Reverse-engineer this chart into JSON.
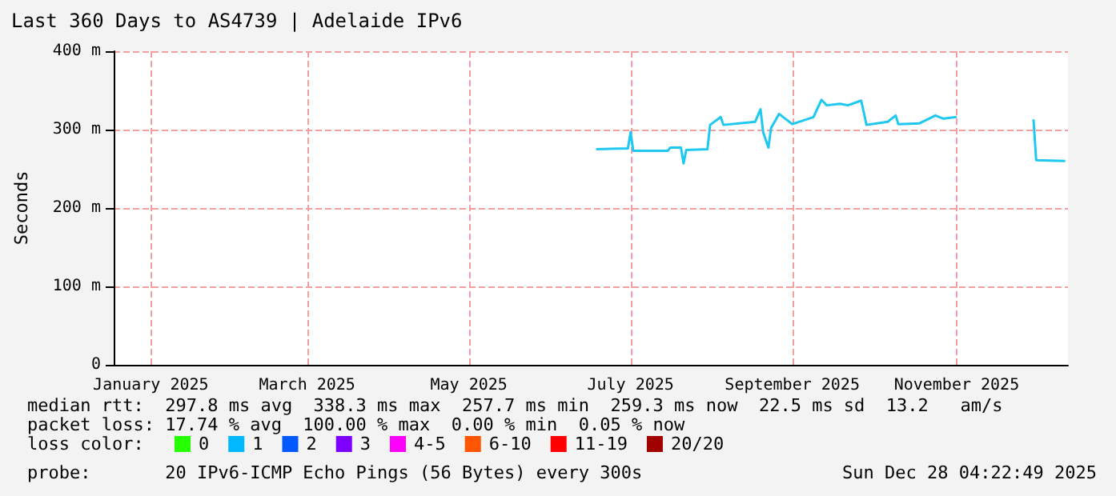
{
  "chart_data": {
    "type": "line",
    "title": "Last 360 Days to AS4739 | Adelaide IPv6",
    "ylabel": "Seconds",
    "x": [
      "2025-07-03",
      "2025-07-15",
      "2025-07-16",
      "2025-07-17",
      "2025-07-30",
      "2025-07-31",
      "2025-08-04",
      "2025-08-05",
      "2025-08-06",
      "2025-08-14",
      "2025-08-15",
      "2025-08-19",
      "2025-08-20",
      "2025-09-01",
      "2025-09-03",
      "2025-09-04",
      "2025-09-06",
      "2025-09-07",
      "2025-09-10",
      "2025-09-15",
      "2025-09-23",
      "2025-09-26",
      "2025-09-28",
      "2025-10-03",
      "2025-10-06",
      "2025-10-11",
      "2025-10-13",
      "2025-10-21",
      "2025-10-24",
      "2025-10-25",
      "2025-11-02",
      "2025-11-08",
      "2025-11-11",
      "2025-11-16",
      "2025-11-20",
      "2025-12-15",
      "2025-12-16",
      "2025-12-27"
    ],
    "series": [
      {
        "color": "#1ec8f0",
        "values": [
          275,
          276,
          297,
          273,
          273,
          277,
          277,
          257,
          274,
          275,
          306,
          316,
          306,
          310,
          326,
          297,
          277,
          302,
          320,
          307,
          316,
          338,
          331,
          333,
          331,
          337,
          306,
          310,
          318,
          307,
          308,
          318,
          314,
          316,
          null,
          313,
          261,
          260
        ]
      },
      {
        "name": "0",
        "color": "#26ff00",
        "values": [
          null,
          null,
          null,
          null,
          null,
          null,
          null,
          null,
          null,
          null,
          null,
          null,
          null,
          null,
          null,
          null,
          null,
          null,
          null,
          null,
          null,
          null,
          null,
          null,
          null,
          null,
          null,
          null,
          null,
          null,
          null,
          null,
          null,
          null,
          null,
          null,
          null,
          null
        ]
      },
      {
        "name": "1",
        "color": "#00b8ff",
        "values": [
          null,
          null,
          null,
          null,
          null,
          null,
          null,
          null,
          null,
          null,
          null,
          null,
          null,
          null,
          null,
          null,
          null,
          null,
          null,
          null,
          null,
          null,
          null,
          null,
          null,
          null,
          null,
          null,
          null,
          null,
          null,
          null,
          null,
          null,
          null,
          null,
          null,
          null
        ]
      },
      {
        "name": "2",
        "color": "#0059ff",
        "values": [
          null,
          null,
          null,
          null,
          null,
          null,
          null,
          null,
          null,
          null,
          null,
          null,
          null,
          null,
          null,
          null,
          null,
          null,
          null,
          null,
          null,
          null,
          null,
          null,
          null,
          null,
          null,
          null,
          null,
          null,
          null,
          null,
          null,
          null,
          null,
          null,
          null,
          null
        ]
      },
      {
        "name": "3",
        "color": "#7e00ff",
        "values": [
          null,
          null,
          null,
          null,
          null,
          null,
          null,
          null,
          null,
          null,
          null,
          null,
          null,
          null,
          null,
          null,
          null,
          null,
          null,
          null,
          null,
          null,
          null,
          null,
          null,
          null,
          null,
          null,
          null,
          null,
          null,
          null,
          null,
          null,
          null,
          null,
          null,
          null
        ]
      },
      {
        "name": "4-5",
        "color": "#ff00ff",
        "values": [
          null,
          null,
          null,
          null,
          null,
          null,
          null,
          null,
          null,
          null,
          null,
          null,
          null,
          null,
          null,
          null,
          null,
          null,
          null,
          null,
          null,
          null,
          null,
          null,
          null,
          null,
          null,
          null,
          null,
          null,
          null,
          null,
          null,
          null,
          null,
          null,
          null,
          null
        ]
      },
      {
        "name": "6-10",
        "color": "#ff5500",
        "values": [
          null,
          null,
          null,
          null,
          null,
          null,
          null,
          null,
          null,
          null,
          null,
          null,
          null,
          null,
          null,
          null,
          null,
          null,
          null,
          null,
          null,
          null,
          null,
          null,
          null,
          null,
          null,
          null,
          null,
          null,
          null,
          null,
          null,
          null,
          null,
          null,
          null,
          null
        ]
      },
      {
        "name": "11-19",
        "color": "#ff0000",
        "values": [
          null,
          null,
          null,
          null,
          null,
          null,
          null,
          null,
          null,
          null,
          null,
          null,
          null,
          null,
          null,
          null,
          null,
          null,
          null,
          null,
          null,
          null,
          null,
          null,
          null,
          null,
          null,
          null,
          null,
          null,
          null,
          null,
          null,
          null,
          null,
          null,
          null,
          null
        ]
      },
      {
        "name": "20/20",
        "color": "#a10000",
        "values": [
          null,
          null,
          null,
          null,
          null,
          null,
          null,
          null,
          null,
          null,
          null,
          null,
          null,
          null,
          null,
          null,
          null,
          null,
          null,
          null,
          null,
          null,
          null,
          null,
          null,
          null,
          null,
          null,
          null,
          null,
          null,
          null,
          null,
          null,
          null,
          null,
          null,
          null
        ]
      }
    ],
    "legend_title": "loss color:",
    "legend": "bottom",
    "xlim": [
      "2025-01-02",
      "2025-12-28"
    ],
    "xticks": [
      {
        "value": "2025-01-16",
        "label": "January 2025"
      },
      {
        "value": "2025-03-16",
        "label": "March 2025"
      },
      {
        "value": "2025-05-16",
        "label": "May 2025"
      },
      {
        "value": "2025-07-16",
        "label": "July 2025"
      },
      {
        "value": "2025-09-15",
        "label": "September 2025"
      },
      {
        "value": "2025-11-16",
        "label": "November 2025"
      }
    ],
    "ylim": [
      0,
      400
    ],
    "yticks": [
      0,
      {
        "value": 100,
        "label": "100 m"
      },
      {
        "value": 200,
        "label": "200 m"
      },
      {
        "value": 300,
        "label": "300 m"
      },
      {
        "value": 400,
        "label": "400 m"
      }
    ],
    "grid": true,
    "marker": "none",
    "line_style": "solid",
    "annotations": [
      "median rtt:  297.8 ms avg  338.3 ms max  257.7 ms min  259.3 ms now  22.5 ms sd  13.2   am/s",
      "packet loss: 17.74 % avg  100.00 % max  0.00 % min  0.05 % now",
      "probe:       20 IPv6-ICMP Echo Pings (56 Bytes) every 300s",
      "Sun Dec 28 04:22:49 2025"
    ]
  }
}
